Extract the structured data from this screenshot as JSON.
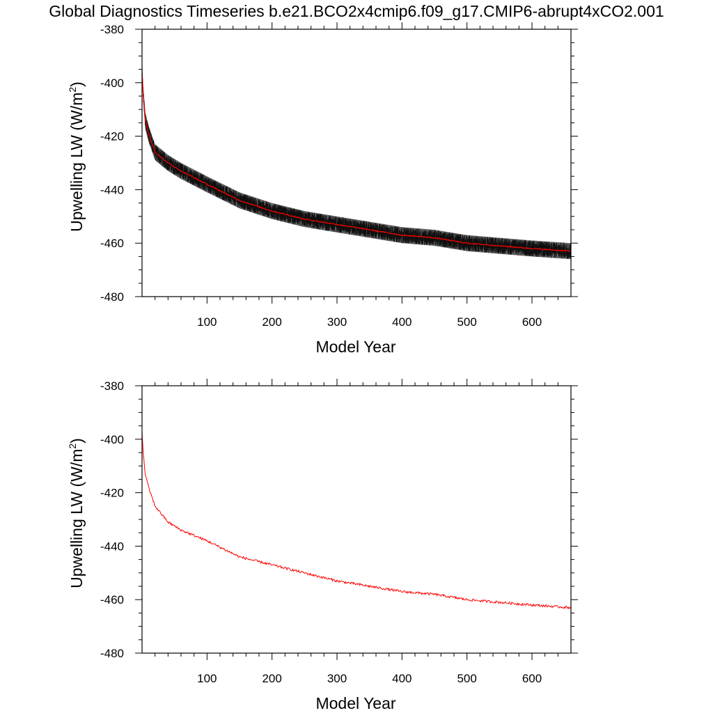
{
  "title": "Global Diagnostics Timeseries b.e21.BCO2x4cmip6.f09_g17.CMIP6-abrupt4xCO2.001",
  "colors": {
    "annual": "#ff0000",
    "monthly": "#000000",
    "monthly_envelope": "#666666"
  },
  "chart_data": [
    {
      "type": "line",
      "xlabel": "Model Year",
      "ylabel_main": "Upwelling LW (W/m",
      "ylabel_sup": "2",
      "ylabel_close": ")",
      "xlim": [
        0,
        660
      ],
      "ylim": [
        -480,
        -380
      ],
      "xticks": [
        100,
        200,
        300,
        400,
        500,
        600
      ],
      "xtick_labels": [
        "100",
        "200",
        "300",
        "400",
        "500",
        "600"
      ],
      "yticks": [
        -380,
        -400,
        -420,
        -440,
        -460,
        -480
      ],
      "ytick_labels": [
        "-380",
        "-400",
        "-420",
        "-440",
        "-460",
        "-480"
      ],
      "series": [
        {
          "kind": "monthly",
          "noise_amplitude": 3,
          "x": [
            0,
            2,
            5,
            10,
            20,
            40,
            60,
            100,
            150,
            200,
            250,
            300,
            350,
            400,
            450,
            500,
            550,
            600,
            660
          ],
          "y": [
            -396,
            -405,
            -414,
            -419,
            -426,
            -430,
            -433,
            -438,
            -444,
            -448,
            -451,
            -453,
            -455,
            -457,
            -458,
            -460,
            -461,
            -462,
            -463
          ]
        },
        {
          "kind": "annual",
          "x": [
            0,
            2,
            5,
            10,
            20,
            40,
            60,
            100,
            150,
            200,
            250,
            300,
            350,
            400,
            450,
            500,
            550,
            600,
            660
          ],
          "y": [
            -396,
            -405,
            -414,
            -419,
            -426,
            -430,
            -433,
            -438,
            -444,
            -448,
            -451,
            -453,
            -455,
            -457,
            -458,
            -460,
            -461,
            -462,
            -463
          ]
        }
      ]
    },
    {
      "type": "line",
      "xlabel": "Model Year",
      "ylabel_main": "Upwelling LW (W/m",
      "ylabel_sup": "2",
      "ylabel_close": ")",
      "xlim": [
        0,
        660
      ],
      "ylim": [
        -480,
        -380
      ],
      "xticks": [
        100,
        200,
        300,
        400,
        500,
        600
      ],
      "xtick_labels": [
        "100",
        "200",
        "300",
        "400",
        "500",
        "600"
      ],
      "yticks": [
        -380,
        -400,
        -420,
        -440,
        -460,
        -480
      ],
      "ytick_labels": [
        "-380",
        "-400",
        "-420",
        "-440",
        "-460",
        "-480"
      ],
      "series": [
        {
          "kind": "annual",
          "x": [
            0,
            2,
            5,
            10,
            20,
            40,
            60,
            100,
            150,
            200,
            250,
            300,
            350,
            400,
            450,
            500,
            550,
            600,
            660
          ],
          "y": [
            -397,
            -406,
            -413,
            -418,
            -425,
            -431,
            -434,
            -438,
            -444,
            -447,
            -450,
            -453,
            -455,
            -457,
            -458,
            -460,
            -461,
            -462,
            -463
          ]
        }
      ]
    }
  ]
}
